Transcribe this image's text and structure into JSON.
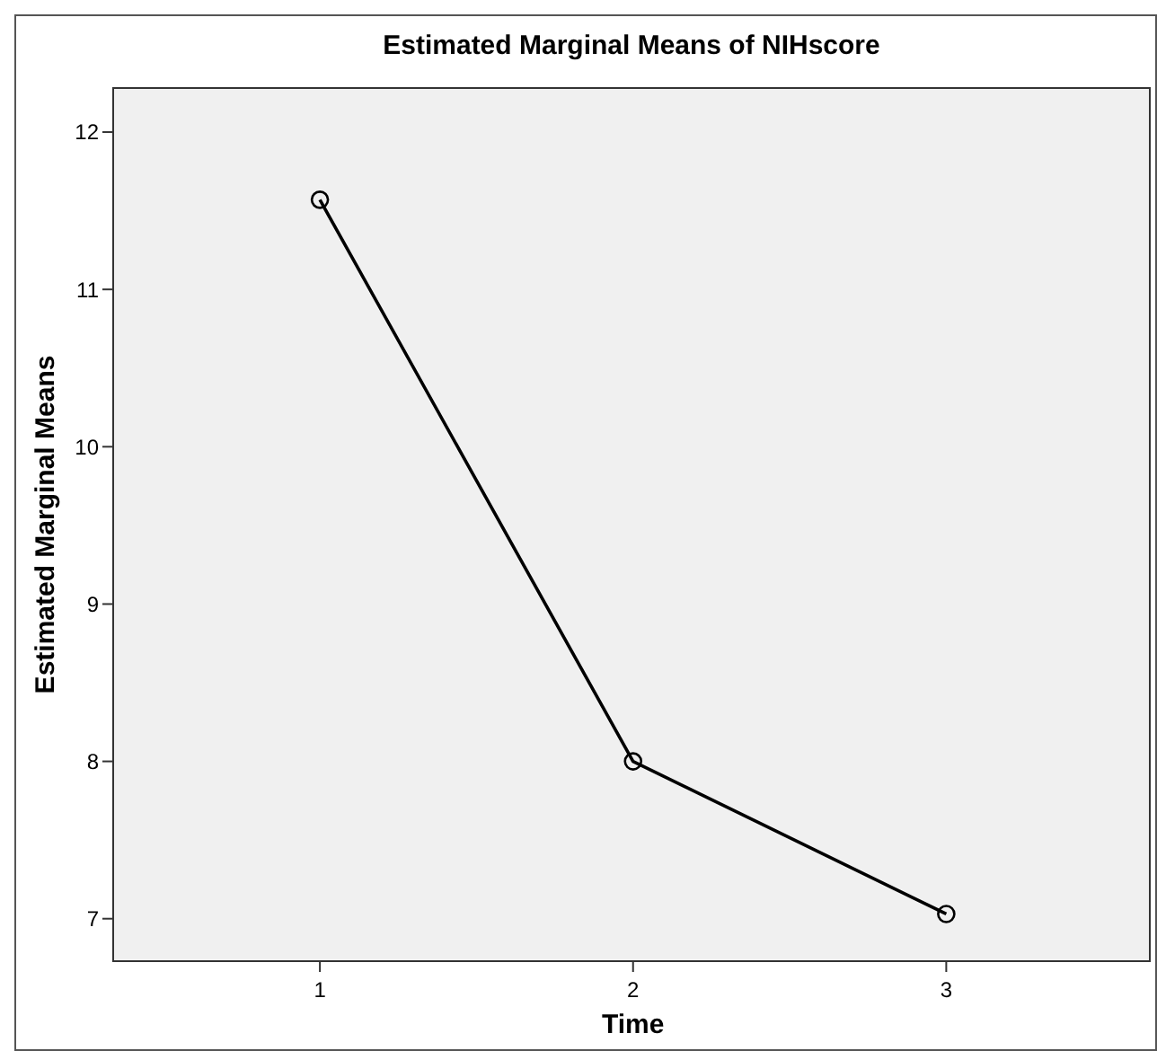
{
  "chart_data": {
    "type": "line",
    "title": "Estimated Marginal Means of NIHscore",
    "xlabel": "Time",
    "ylabel": "Estimated Marginal Means",
    "x": [
      1,
      2,
      3
    ],
    "values": [
      11.57,
      8.0,
      7.03
    ],
    "color": "#000000",
    "marker": "circle",
    "xlim": [
      0.34,
      3.65
    ],
    "xticks": [
      1,
      2,
      3
    ],
    "ylim": [
      6.73,
      12.28
    ],
    "yticks": [
      7,
      8,
      9,
      10,
      11,
      12
    ],
    "grid": false
  }
}
